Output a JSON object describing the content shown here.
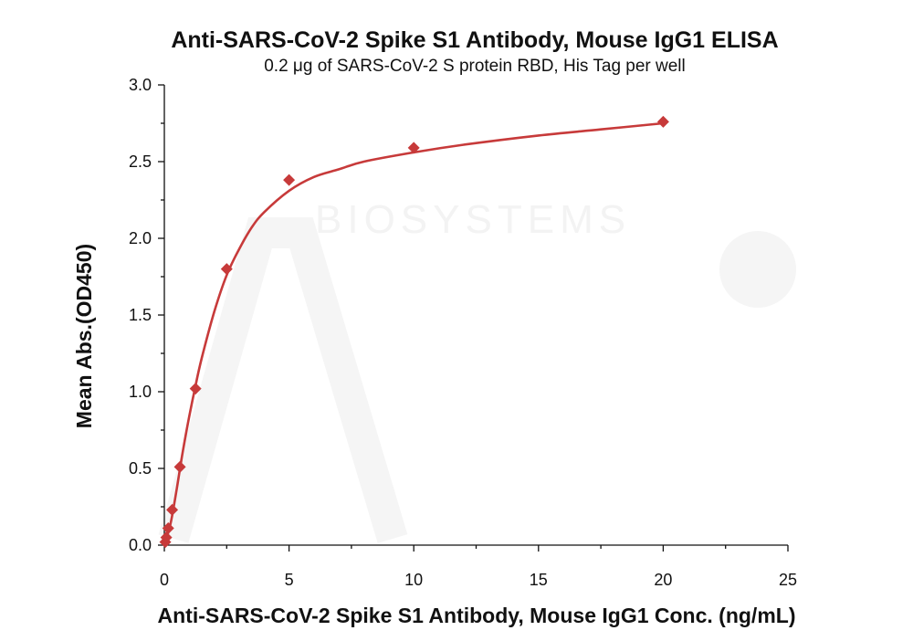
{
  "chart_data": {
    "type": "scatter",
    "title": "Anti-SARS-CoV-2 Spike S1 Antibody, Mouse IgG1 ELISA",
    "subtitle": "0.2 μg of SARS-CoV-2 S protein RBD, His Tag per well",
    "xlabel": "Anti-SARS-CoV-2 Spike S1 Antibody, Mouse IgG1 Conc. (ng/mL)",
    "ylabel": "Mean Abs.(OD450)",
    "xlim": [
      0,
      25
    ],
    "ylim": [
      0,
      3.0
    ],
    "xticks": [
      0,
      5,
      10,
      15,
      20,
      25
    ],
    "yticks": [
      "0.0",
      "0.5",
      "1.0",
      "1.5",
      "2.0",
      "2.5",
      "3.0"
    ],
    "grid": false,
    "series": [
      {
        "color": "#c73a3a",
        "marker": "diamond",
        "x": [
          0.039,
          0.078,
          0.156,
          0.313,
          0.625,
          1.25,
          2.5,
          5,
          10,
          20
        ],
        "y": [
          0.02,
          0.05,
          0.11,
          0.23,
          0.51,
          1.02,
          1.8,
          2.38,
          2.59,
          2.76
        ]
      }
    ],
    "fit_curve": {
      "color": "#c73a3a",
      "x": [
        0,
        0.25,
        0.5,
        0.75,
        1,
        1.25,
        1.5,
        2,
        2.5,
        3,
        3.5,
        4,
        5,
        6,
        7,
        8,
        10,
        12,
        15,
        17.5,
        20
      ],
      "y": [
        0.0,
        0.14,
        0.37,
        0.62,
        0.84,
        1.04,
        1.22,
        1.52,
        1.76,
        1.93,
        2.07,
        2.17,
        2.31,
        2.4,
        2.45,
        2.5,
        2.56,
        2.61,
        2.67,
        2.71,
        2.75
      ]
    }
  },
  "watermark": {
    "text": "BIOSYSTEMS",
    "color": "#f3f3f3"
  }
}
